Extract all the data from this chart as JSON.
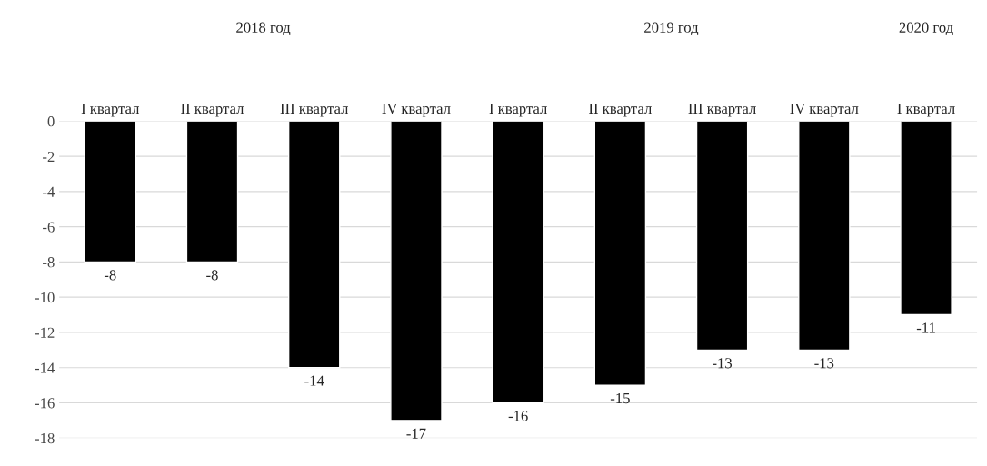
{
  "chart_data": {
    "type": "bar",
    "categories": [
      "I квартал",
      "II квартал",
      "III квартал",
      "IV квартал",
      "I квартал",
      "II квартал",
      "III квартал",
      "IV квартал",
      "I квартал"
    ],
    "series": [
      {
        "color": "#000000",
        "values": [
          -8,
          -8,
          -14,
          -17,
          -16,
          -15,
          -13,
          -13,
          -11
        ]
      }
    ],
    "ylim": [
      -18,
      0
    ],
    "yticks": [
      0,
      -2,
      -4,
      -6,
      -8,
      -10,
      -12,
      -14,
      -16,
      -18
    ],
    "grid": "y",
    "data_labels": true,
    "annotations": [
      "2018 год",
      "2019 год",
      "2020 год"
    ]
  }
}
